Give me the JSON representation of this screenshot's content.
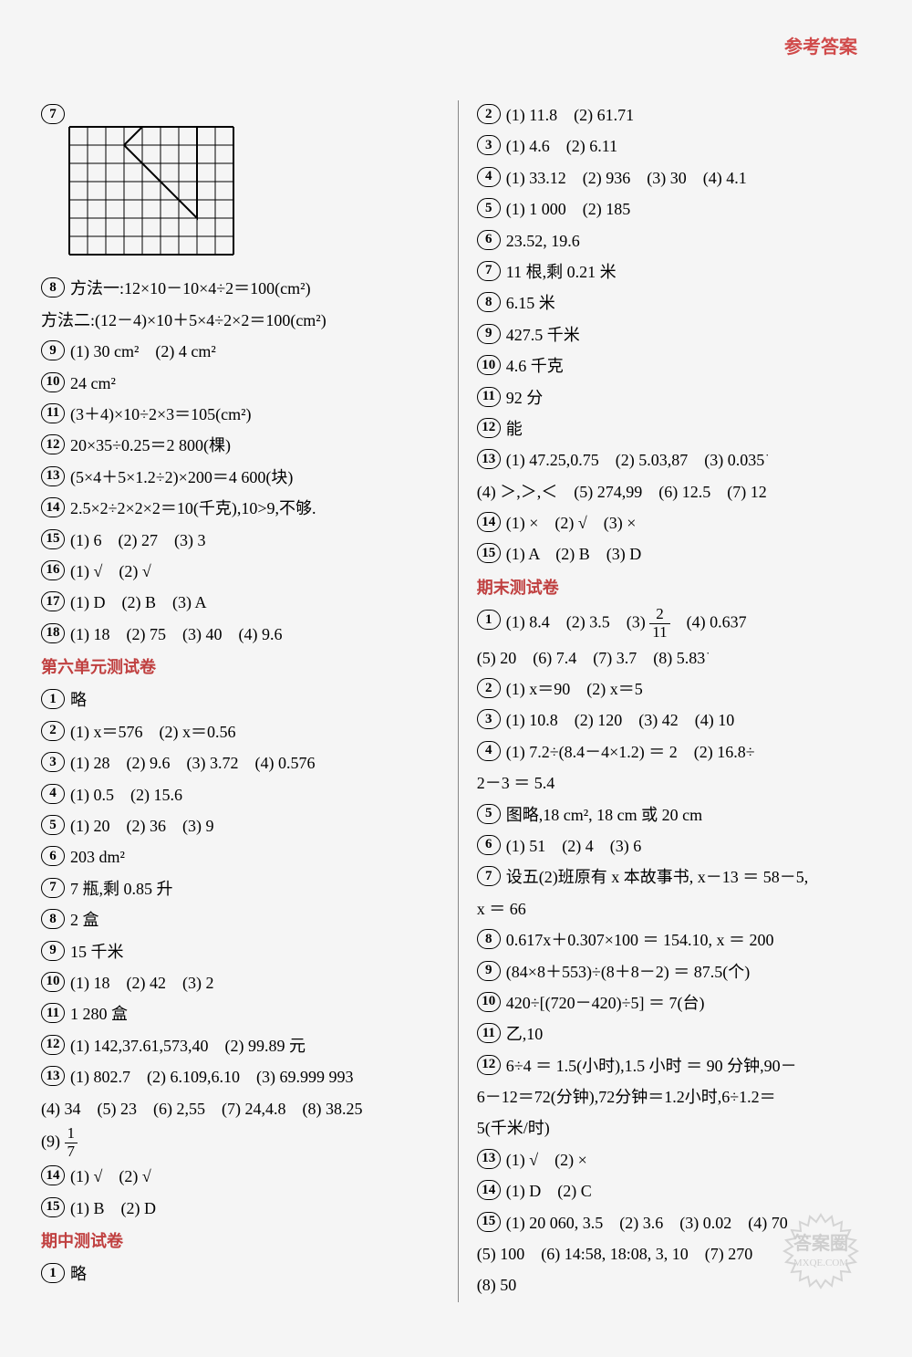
{
  "header": "参考答案",
  "grid": {
    "cols": 9,
    "rows": 7,
    "cell": 20
  },
  "watermark": {
    "text1": "答案圈",
    "text2": "MXQE.COM"
  },
  "left": [
    {
      "n": "7",
      "t": "",
      "isGrid": true
    },
    {
      "n": "8",
      "t": "方法一:12×10－10×4÷2＝100(cm²)"
    },
    {
      "cont": "方法二:(12－4)×10＋5×4÷2×2＝100(cm²)"
    },
    {
      "n": "9",
      "t": "(1) 30 cm²　(2) 4 cm²"
    },
    {
      "n": "10",
      "t": "24 cm²"
    },
    {
      "n": "11",
      "t": "(3＋4)×10÷2×3＝105(cm²)"
    },
    {
      "n": "12",
      "t": "20×35÷0.25＝2 800(棵)"
    },
    {
      "n": "13",
      "t": "(5×4＋5×1.2÷2)×200＝4 600(块)"
    },
    {
      "n": "14",
      "t": "2.5×2÷2×2×2＝10(千克),10>9,不够."
    },
    {
      "n": "15",
      "t": "(1) 6　(2) 27　(3) 3"
    },
    {
      "n": "16",
      "t": "(1) √　(2) √"
    },
    {
      "n": "17",
      "t": "(1) D　(2) B　(3) A"
    },
    {
      "n": "18",
      "t": "(1) 18　(2) 75　(3) 40　(4) 9.6"
    },
    {
      "section": "第六单元测试卷"
    },
    {
      "n": "1",
      "t": "略"
    },
    {
      "n": "2",
      "t": "(1) x＝576　(2) x＝0.56"
    },
    {
      "n": "3",
      "t": "(1) 28　(2) 9.6　(3) 3.72　(4) 0.576"
    },
    {
      "n": "4",
      "t": "(1) 0.5　(2) 15.6"
    },
    {
      "n": "5",
      "t": "(1) 20　(2) 36　(3) 9"
    },
    {
      "n": "6",
      "t": "203 dm²"
    },
    {
      "n": "7",
      "t": "7 瓶,剩 0.85 升"
    },
    {
      "n": "8",
      "t": "2 盒"
    },
    {
      "n": "9",
      "t": "15 千米"
    },
    {
      "n": "10",
      "t": "(1) 18　(2) 42　(3) 2"
    },
    {
      "n": "11",
      "t": "1 280 盒"
    },
    {
      "n": "12",
      "t": "(1) 142,37.61,573,40　(2) 99.89 元"
    },
    {
      "n": "13",
      "t": "(1) 802.7　(2) 6.10͘9,6.10　(3) 69.999 993"
    },
    {
      "cont": "(4) 34　(5) 23　(6) 2,55　(7) 24,4.8　(8) 38.25"
    },
    {
      "cont": "(9) ",
      "frac": {
        "num": "1",
        "den": "7"
      }
    },
    {
      "n": "14",
      "t": "(1) √　(2) √"
    },
    {
      "n": "15",
      "t": "(1) B　(2) D"
    },
    {
      "section": "期中测试卷"
    },
    {
      "n": "1",
      "t": "略"
    }
  ],
  "right": [
    {
      "n": "2",
      "t": "(1) 11.8　(2) 61.71"
    },
    {
      "n": "3",
      "t": "(1) 4.6　(2) 6.11"
    },
    {
      "n": "4",
      "t": "(1) 33.12　(2) 936　(3) 30　(4) 4.1"
    },
    {
      "n": "5",
      "t": "(1) 1 000　(2) 185"
    },
    {
      "n": "6",
      "t": "23.52, 19.6"
    },
    {
      "n": "7",
      "t": "11 根,剩 0.21 米"
    },
    {
      "n": "8",
      "t": "6.15 米"
    },
    {
      "n": "9",
      "t": "427.5 千米"
    },
    {
      "n": "10",
      "t": "4.6 千克"
    },
    {
      "n": "11",
      "t": "92 分"
    },
    {
      "n": "12",
      "t": "能"
    },
    {
      "n": "13",
      "t": "(1) 47.25,0.75　(2) 5.03,87　(3) 0.03͘5͘"
    },
    {
      "cont": "(4) ＞,＞,＜　(5) 274,99　(6) 12.5　(7) 12"
    },
    {
      "n": "14",
      "t": "(1) ×　(2) √　(3) ×"
    },
    {
      "n": "15",
      "t": "(1) A　(2) B　(3) D"
    },
    {
      "section": "期末测试卷"
    },
    {
      "n": "1",
      "t": "(1) 8.4　(2) 3.5　(3) ",
      "frac": {
        "num": "2",
        "den": "11"
      },
      "after": "　(4) 0.637"
    },
    {
      "cont": "(5) 20　(6) 7.4　(7) 3.7　(8) 5.8͘3͘"
    },
    {
      "n": "2",
      "t": "(1) x＝90　(2) x＝5"
    },
    {
      "n": "3",
      "t": "(1) 10.8　(2) 120　(3) 42　(4) 10"
    },
    {
      "n": "4",
      "t": "(1) 7.2÷(8.4－4×1.2) ＝ 2　(2) 16.8÷"
    },
    {
      "cont": "2－3 ＝ 5.4"
    },
    {
      "n": "5",
      "t": "图略,18 cm², 18 cm 或 20 cm"
    },
    {
      "n": "6",
      "t": "(1) 51　(2) 4　(3) 6"
    },
    {
      "n": "7",
      "t": "设五(2)班原有 x 本故事书, x－13 ＝ 58－5,"
    },
    {
      "cont": "x ＝ 66"
    },
    {
      "n": "8",
      "t": "0.617x＋0.307×100 ＝ 154.10, x ＝ 200"
    },
    {
      "n": "9",
      "t": "(84×8＋553)÷(8＋8－2) ＝ 87.5(个)"
    },
    {
      "n": "10",
      "t": "420÷[(720－420)÷5] ＝ 7(台)"
    },
    {
      "n": "11",
      "t": "乙,10"
    },
    {
      "n": "12",
      "t": "6÷4 ＝ 1.5(小时),1.5 小时 ＝ 90 分钟,90－"
    },
    {
      "cont": "6－12＝72(分钟),72分钟＝1.2小时,6÷1.2＝"
    },
    {
      "cont": "5(千米/时)"
    },
    {
      "n": "13",
      "t": "(1) √　(2) ×"
    },
    {
      "n": "14",
      "t": "(1) D　(2) C"
    },
    {
      "n": "15",
      "t": "(1) 20 060, 3.5　(2) 3.6　(3) 0.02　(4) 70"
    },
    {
      "cont": "(5) 100　(6) 14:58, 18:08, 3, 10　(7) 270"
    },
    {
      "cont": "(8) 50"
    }
  ]
}
